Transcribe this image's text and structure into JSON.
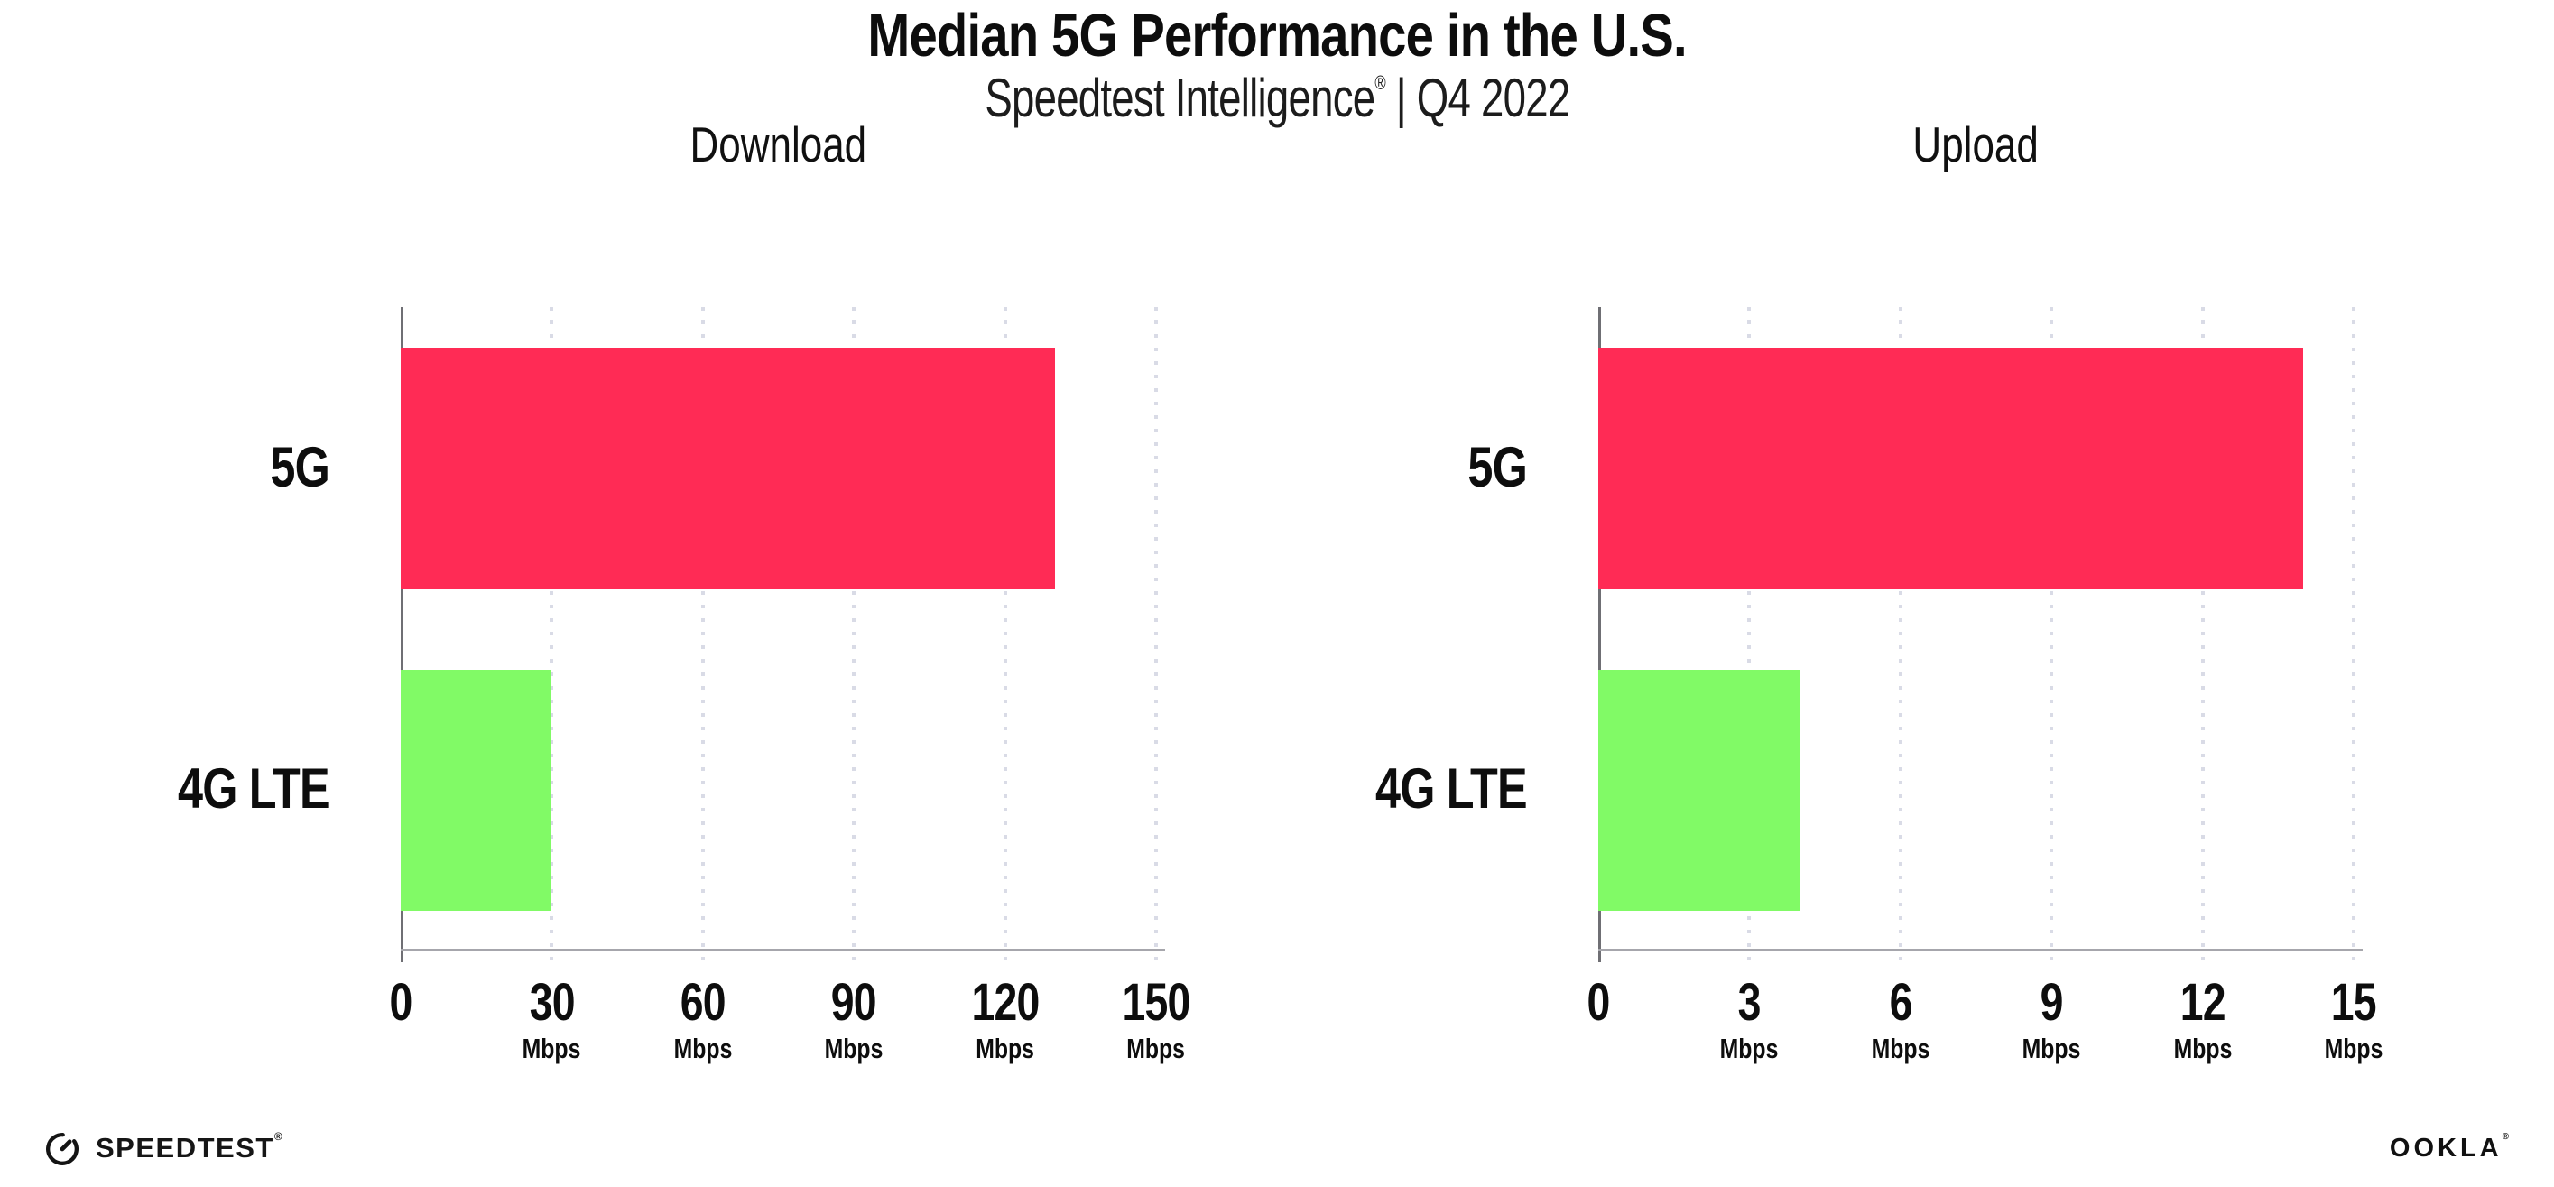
{
  "header": {
    "title": "Median 5G Performance in the U.S.",
    "subtitle_brand": "Speedtest Intelligence",
    "subtitle_reg": "®",
    "subtitle_rest": " | Q4 2022"
  },
  "chart_data": [
    {
      "type": "bar",
      "orientation": "horizontal",
      "title": "Download",
      "categories": [
        "5G",
        "4G LTE"
      ],
      "values": [
        130,
        30
      ],
      "unit": "Mbps",
      "xlabel": "",
      "ylabel": "",
      "xlim": [
        0,
        150
      ],
      "xticks": [
        0,
        30,
        60,
        90,
        120,
        150
      ],
      "bar_colors": [
        "#ff2b55",
        "#81fa66"
      ],
      "grid": "vertical-dotted",
      "legend_position": "none"
    },
    {
      "type": "bar",
      "orientation": "horizontal",
      "title": "Upload",
      "categories": [
        "5G",
        "4G LTE"
      ],
      "values": [
        14,
        4
      ],
      "unit": "Mbps",
      "xlabel": "",
      "ylabel": "",
      "xlim": [
        0,
        15
      ],
      "xticks": [
        0,
        3,
        6,
        9,
        12,
        15
      ],
      "bar_colors": [
        "#ff2b55",
        "#81fa66"
      ],
      "grid": "vertical-dotted",
      "legend_position": "none"
    }
  ],
  "footer": {
    "speedtest_label": "SPEEDTEST",
    "speedtest_mark": "®",
    "ookla_label": "OOKLA",
    "ookla_mark": "®"
  }
}
